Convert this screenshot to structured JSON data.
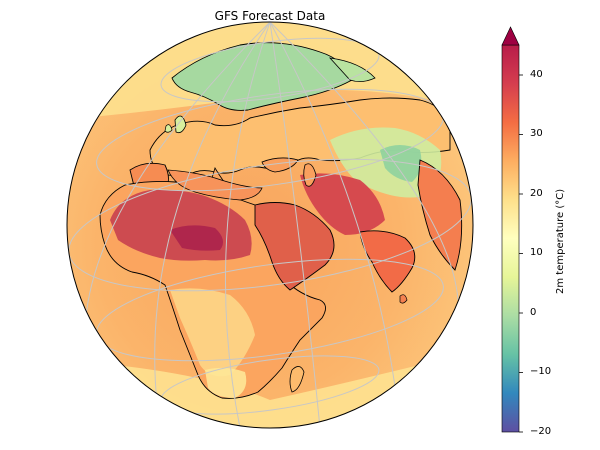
{
  "title": "GFS Forecast Data",
  "colorbar": {
    "label": "2m temperature (°C)",
    "ticks": [
      "−20",
      "−10",
      "0",
      "10",
      "20",
      "30",
      "40"
    ],
    "tick_values": [
      -20,
      -10,
      0,
      10,
      20,
      30,
      40
    ],
    "range": [
      -20,
      45
    ],
    "extend": "max",
    "colormap": "Spectral_r",
    "stops": [
      "#5e4fa2",
      "#3288bd",
      "#66c2a5",
      "#abdda4",
      "#e6f598",
      "#ffffbf",
      "#fee08b",
      "#fdae61",
      "#f46d43",
      "#d53e4f",
      "#9e0142"
    ]
  },
  "map": {
    "projection": "orthographic",
    "region": "Europe, Africa, Middle East, South Asia",
    "features": [
      "coastlines",
      "gridlines"
    ],
    "gridline_color": "#c7c7c7"
  }
}
